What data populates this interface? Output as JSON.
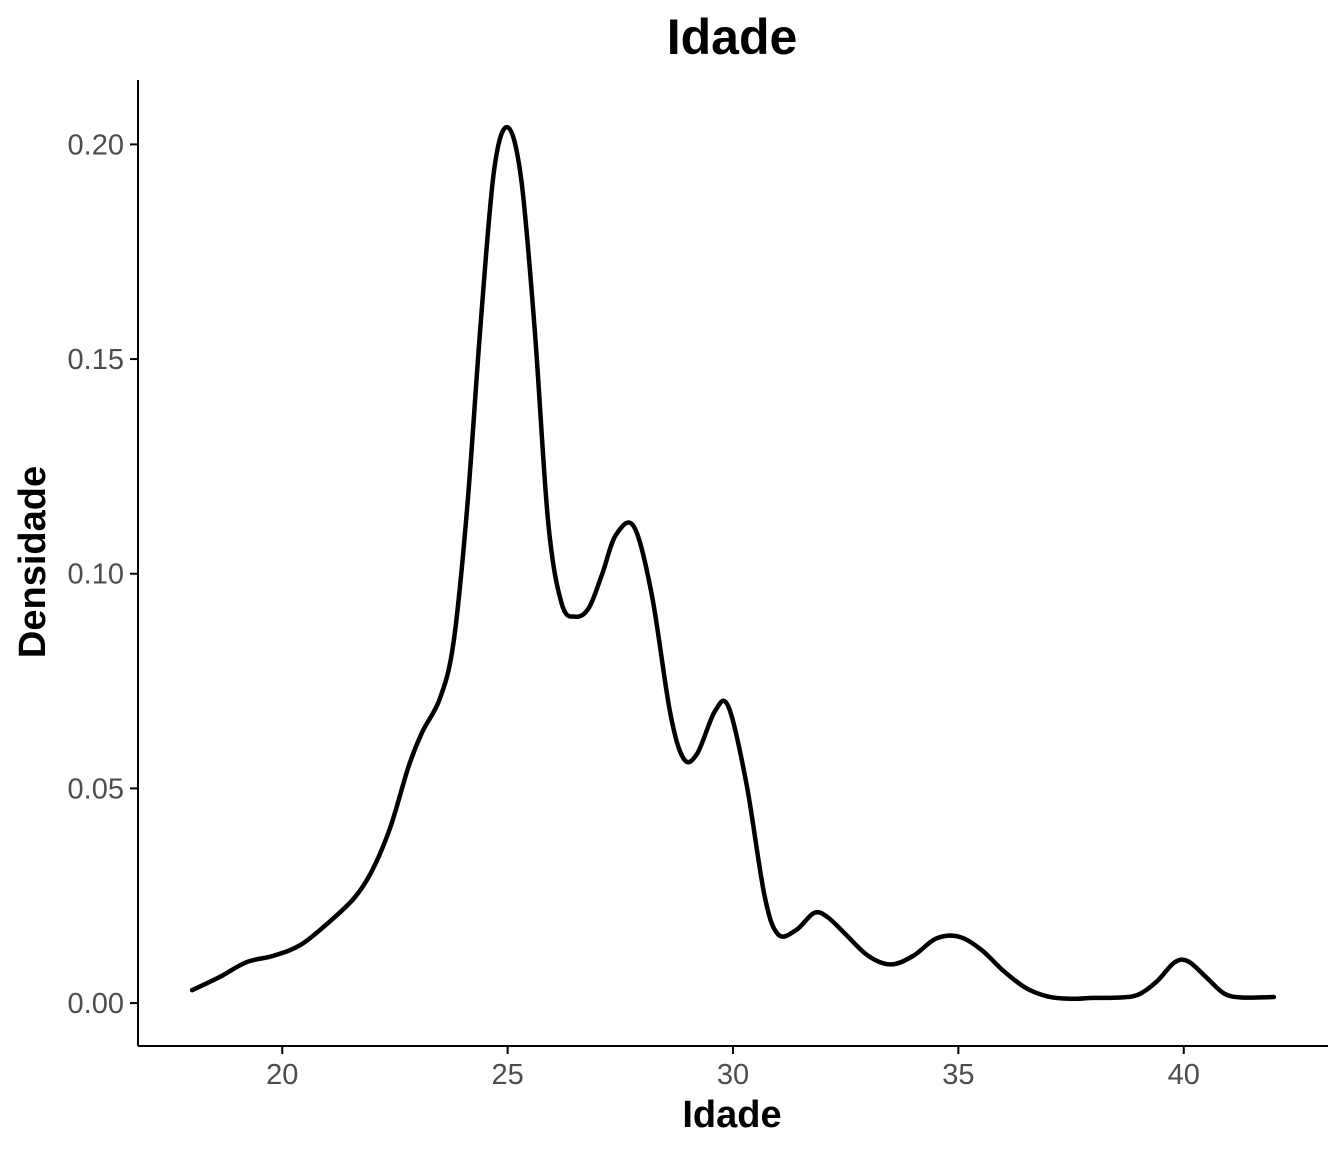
{
  "chart_data": {
    "type": "line",
    "title": "Idade",
    "xlabel": "Idade",
    "ylabel": "Densidade",
    "xlim": [
      16.8,
      43.2
    ],
    "ylim": [
      -0.01,
      0.215
    ],
    "x_ticks": [
      20,
      25,
      30,
      35,
      40
    ],
    "x_tick_labels": [
      "20",
      "25",
      "30",
      "35",
      "40"
    ],
    "y_ticks": [
      0,
      0.05,
      0.1,
      0.15,
      0.2
    ],
    "y_tick_labels": [
      "0.00",
      "0.05",
      "0.10",
      "0.15",
      "0.20"
    ],
    "grid": false,
    "legend": "none",
    "line_color": "#000000",
    "series": [
      {
        "x": [
          18.0,
          18.6,
          19.2,
          19.8,
          20.4,
          21.0,
          21.6,
          22.0,
          22.4,
          22.8,
          23.1,
          23.5,
          23.8,
          24.1,
          24.4,
          24.7,
          25.0,
          25.3,
          25.6,
          25.9,
          26.2,
          26.5,
          26.8,
          27.1,
          27.4,
          27.8,
          28.2,
          28.6,
          28.9,
          29.2,
          29.6,
          29.9,
          30.3,
          30.7,
          31.0,
          31.4,
          31.8,
          32.1,
          32.5,
          33.0,
          33.5,
          34.0,
          34.5,
          35.0,
          35.5,
          36.0,
          36.5,
          37.0,
          37.5,
          38.0,
          38.6,
          39.0,
          39.4,
          39.8,
          40.1,
          40.5,
          40.9,
          41.3,
          42.0
        ],
        "y": [
          0.003,
          0.006,
          0.0095,
          0.011,
          0.0135,
          0.0185,
          0.0245,
          0.031,
          0.041,
          0.055,
          0.063,
          0.071,
          0.084,
          0.115,
          0.158,
          0.194,
          0.204,
          0.192,
          0.157,
          0.112,
          0.093,
          0.09,
          0.092,
          0.1,
          0.109,
          0.111,
          0.095,
          0.068,
          0.057,
          0.058,
          0.068,
          0.069,
          0.051,
          0.025,
          0.016,
          0.017,
          0.021,
          0.02,
          0.016,
          0.011,
          0.009,
          0.011,
          0.015,
          0.0155,
          0.0125,
          0.0075,
          0.0035,
          0.0015,
          0.001,
          0.0012,
          0.0013,
          0.002,
          0.005,
          0.0095,
          0.0097,
          0.006,
          0.0022,
          0.0013,
          0.0014
        ]
      }
    ]
  }
}
